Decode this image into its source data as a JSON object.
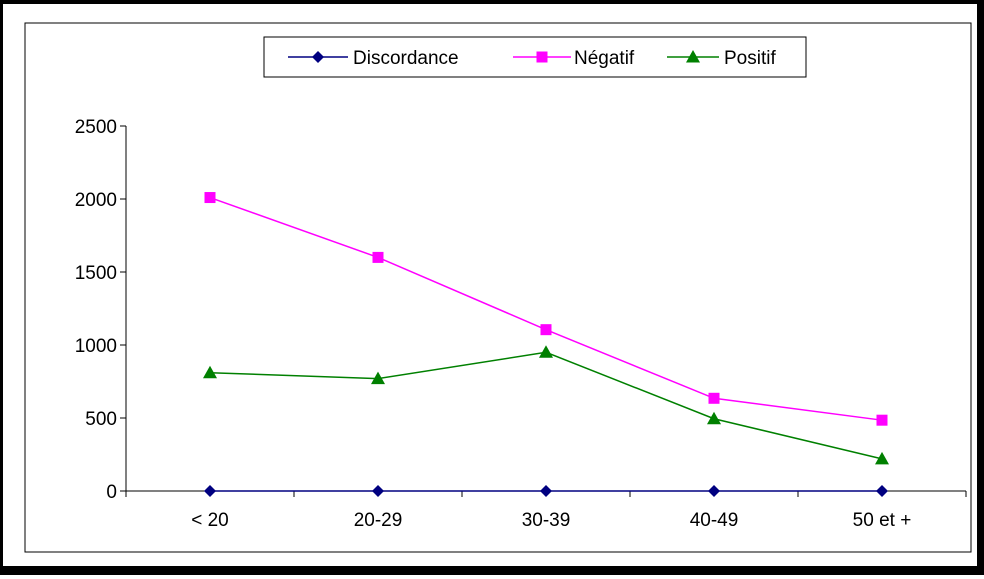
{
  "chart_data": {
    "type": "line",
    "categories": [
      "< 20",
      "20-29",
      "30-39",
      "40-49",
      "50 et +"
    ],
    "ylim": [
      0,
      2500
    ],
    "yticks": [
      "0",
      "500",
      "1000",
      "1500",
      "2000",
      "2500"
    ],
    "grid": false,
    "legend_position": "top",
    "series": [
      {
        "name": "Discordance",
        "values": [
          0,
          0,
          0,
          0,
          0
        ],
        "color": "#000080",
        "marker": "diamond"
      },
      {
        "name": "Négatif",
        "values": [
          2010,
          1600,
          1105,
          635,
          485
        ],
        "color": "#FF00FF",
        "marker": "square"
      },
      {
        "name": "Positif",
        "values": [
          810,
          770,
          950,
          495,
          220
        ],
        "color": "#008000",
        "marker": "triangle"
      }
    ]
  }
}
